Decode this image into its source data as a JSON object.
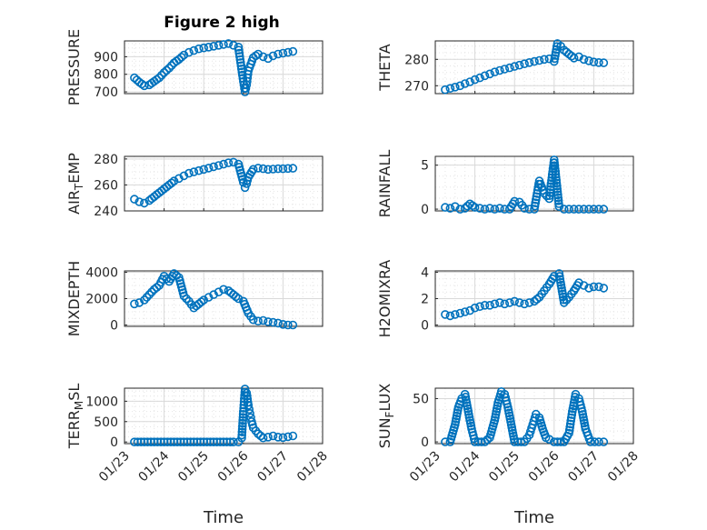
{
  "title": "Figure 2 high",
  "chart_data": [
    {
      "type": "scatter",
      "ylabel": "PRESSURE",
      "xlabel": "",
      "ylim": [
        690,
        990
      ],
      "yticks": [
        "700",
        "800",
        "900"
      ],
      "xticks": [
        "01/23",
        "01/24",
        "01/25",
        "01/26",
        "01/27",
        "01/28"
      ],
      "x": [
        "01/23 06:00",
        "01/23 09:00",
        "01/23 12:00",
        "01/23 15:00",
        "01/23 18:00",
        "01/23 21:00",
        "01/24 00:00",
        "01/24 03:00",
        "01/24 06:00",
        "01/24 09:00",
        "01/24 12:00",
        "01/24 15:00",
        "01/24 18:00",
        "01/24 21:00",
        "01/25 00:00",
        "01/25 03:00",
        "01/25 06:00",
        "01/25 09:00",
        "01/25 12:00",
        "01/25 15:00",
        "01/25 18:00",
        "01/25 21:00",
        "01/26 00:00",
        "01/26 01:00",
        "01/26 02:00",
        "01/26 03:00",
        "01/26 06:00",
        "01/26 09:00",
        "01/26 12:00",
        "01/26 15:00",
        "01/26 18:00",
        "01/26 21:00",
        "01/27 00:00",
        "01/27 03:00",
        "01/27 06:00"
      ],
      "y": [
        780,
        755,
        735,
        740,
        760,
        780,
        810,
        835,
        865,
        885,
        910,
        925,
        935,
        945,
        950,
        955,
        960,
        965,
        970,
        975,
        965,
        955,
        760,
        700,
        740,
        820,
        895,
        915,
        900,
        890,
        905,
        915,
        920,
        925,
        930
      ]
    },
    {
      "type": "scatter",
      "ylabel": "THETA",
      "xlabel": "",
      "ylim": [
        267,
        287
      ],
      "yticks": [
        "270",
        "280"
      ],
      "xticks": [
        "01/23",
        "01/24",
        "01/25",
        "01/26",
        "01/27",
        "01/28"
      ],
      "x": [
        "01/23 06:00",
        "01/23 09:00",
        "01/23 12:00",
        "01/23 15:00",
        "01/23 18:00",
        "01/23 21:00",
        "01/24 00:00",
        "01/24 03:00",
        "01/24 06:00",
        "01/24 09:00",
        "01/24 12:00",
        "01/24 15:00",
        "01/24 18:00",
        "01/24 21:00",
        "01/25 00:00",
        "01/25 03:00",
        "01/25 06:00",
        "01/25 09:00",
        "01/25 12:00",
        "01/25 15:00",
        "01/25 18:00",
        "01/25 21:00",
        "01/26 00:00",
        "01/26 02:00",
        "01/26 04:00",
        "01/26 06:00",
        "01/26 09:00",
        "01/26 12:00",
        "01/26 15:00",
        "01/26 18:00",
        "01/26 21:00",
        "01/27 00:00",
        "01/27 03:00",
        "01/27 06:00"
      ],
      "y": [
        268.5,
        269,
        269.5,
        270,
        270.8,
        271.5,
        272.3,
        273,
        273.8,
        274.5,
        275.2,
        275.8,
        276.3,
        276.8,
        277.3,
        277.8,
        278.3,
        278.8,
        279.2,
        279.6,
        280,
        280.2,
        279.2,
        286,
        285,
        283.5,
        282,
        280.5,
        281,
        280,
        279.5,
        279,
        278.8,
        278.7
      ]
    },
    {
      "type": "scatter",
      "ylabel": "AIR_TEMP",
      "xlabel": "",
      "ylim": [
        240,
        282
      ],
      "yticks": [
        "240",
        "260",
        "280"
      ],
      "xticks": [
        "01/23",
        "01/24",
        "01/25",
        "01/26",
        "01/27",
        "01/28"
      ],
      "x": [
        "01/23 06:00",
        "01/23 09:00",
        "01/23 12:00",
        "01/23 15:00",
        "01/23 18:00",
        "01/23 21:00",
        "01/24 00:00",
        "01/24 03:00",
        "01/24 06:00",
        "01/24 09:00",
        "01/24 12:00",
        "01/24 15:00",
        "01/24 18:00",
        "01/24 21:00",
        "01/25 00:00",
        "01/25 03:00",
        "01/25 06:00",
        "01/25 09:00",
        "01/25 12:00",
        "01/25 15:00",
        "01/25 18:00",
        "01/25 21:00",
        "01/26 00:00",
        "01/26 01:00",
        "01/26 02:00",
        "01/26 03:00",
        "01/26 06:00",
        "01/26 09:00",
        "01/26 12:00",
        "01/26 15:00",
        "01/26 18:00",
        "01/26 21:00",
        "01/27 00:00",
        "01/27 03:00",
        "01/27 06:00"
      ],
      "y": [
        249,
        247,
        246,
        248,
        251,
        254,
        257,
        260,
        263,
        265,
        267,
        269,
        270,
        271,
        272,
        273,
        274,
        275,
        276,
        277,
        277.5,
        276,
        262,
        258,
        261,
        266,
        272,
        273,
        272.5,
        272,
        272.2,
        272.5,
        272.5,
        272.7,
        272.8
      ]
    },
    {
      "type": "scatter",
      "ylabel": "RAINFALL",
      "xlabel": "",
      "ylim": [
        -0.2,
        6
      ],
      "yticks": [
        "0",
        "5"
      ],
      "xticks": [
        "01/23",
        "01/24",
        "01/25",
        "01/26",
        "01/27",
        "01/28"
      ],
      "x": [
        "01/23 06:00",
        "01/23 09:00",
        "01/23 12:00",
        "01/23 15:00",
        "01/23 18:00",
        "01/23 21:00",
        "01/24 00:00",
        "01/24 03:00",
        "01/24 06:00",
        "01/24 09:00",
        "01/24 12:00",
        "01/24 15:00",
        "01/24 18:00",
        "01/24 21:00",
        "01/25 00:00",
        "01/25 03:00",
        "01/25 06:00",
        "01/25 09:00",
        "01/25 12:00",
        "01/25 15:00",
        "01/25 18:00",
        "01/25 21:00",
        "01/26 00:00",
        "01/26 03:00",
        "01/26 06:00",
        "01/26 09:00",
        "01/26 12:00",
        "01/26 15:00",
        "01/26 18:00",
        "01/26 21:00",
        "01/27 00:00",
        "01/27 03:00",
        "01/27 06:00"
      ],
      "y": [
        0.2,
        0.1,
        0.3,
        0,
        0.1,
        0.6,
        0.2,
        0.1,
        0,
        0.1,
        0,
        0.1,
        0,
        0,
        0.9,
        0.8,
        0.1,
        0,
        0,
        3.2,
        1.8,
        1.2,
        5.6,
        0.3,
        0,
        0,
        0,
        0,
        0,
        0,
        0,
        0,
        0
      ]
    },
    {
      "type": "scatter",
      "ylabel": "MIXDEPTH",
      "xlabel": "",
      "ylim": [
        -100,
        4100
      ],
      "yticks": [
        "0",
        "2000",
        "4000"
      ],
      "xticks": [
        "01/23",
        "01/24",
        "01/25",
        "01/26",
        "01/27",
        "01/28"
      ],
      "x": [
        "01/23 06:00",
        "01/23 09:00",
        "01/23 12:00",
        "01/23 15:00",
        "01/23 18:00",
        "01/23 21:00",
        "01/24 00:00",
        "01/24 03:00",
        "01/24 06:00",
        "01/24 09:00",
        "01/24 12:00",
        "01/24 15:00",
        "01/24 18:00",
        "01/24 21:00",
        "01/25 00:00",
        "01/25 03:00",
        "01/25 06:00",
        "01/25 09:00",
        "01/25 12:00",
        "01/25 15:00",
        "01/25 18:00",
        "01/25 21:00",
        "01/26 00:00",
        "01/26 03:00",
        "01/26 06:00",
        "01/26 09:00",
        "01/26 12:00",
        "01/26 15:00",
        "01/26 18:00",
        "01/26 21:00",
        "01/27 00:00",
        "01/27 03:00",
        "01/27 06:00"
      ],
      "y": [
        1600,
        1700,
        1900,
        2300,
        2700,
        3000,
        3700,
        3300,
        3900,
        3600,
        2200,
        1800,
        1300,
        1600,
        1900,
        2100,
        2300,
        2500,
        2700,
        2600,
        2300,
        2000,
        1800,
        900,
        400,
        300,
        350,
        250,
        200,
        150,
        50,
        0,
        0
      ]
    },
    {
      "type": "scatter",
      "ylabel": "H2OMIXRA",
      "xlabel": "",
      "ylim": [
        -0.1,
        4.1
      ],
      "yticks": [
        "0",
        "2",
        "4"
      ],
      "xticks": [
        "01/23",
        "01/24",
        "01/25",
        "01/26",
        "01/27",
        "01/28"
      ],
      "x": [
        "01/23 06:00",
        "01/23 09:00",
        "01/23 12:00",
        "01/23 15:00",
        "01/23 18:00",
        "01/23 21:00",
        "01/24 00:00",
        "01/24 03:00",
        "01/24 06:00",
        "01/24 09:00",
        "01/24 12:00",
        "01/24 15:00",
        "01/24 18:00",
        "01/24 21:00",
        "01/25 00:00",
        "01/25 03:00",
        "01/25 06:00",
        "01/25 09:00",
        "01/25 12:00",
        "01/25 15:00",
        "01/25 18:00",
        "01/25 21:00",
        "01/26 00:00",
        "01/26 03:00",
        "01/26 06:00",
        "01/26 09:00",
        "01/26 12:00",
        "01/26 15:00",
        "01/26 18:00",
        "01/26 21:00",
        "01/27 00:00",
        "01/27 03:00",
        "01/27 06:00"
      ],
      "y": [
        0.8,
        0.7,
        0.8,
        0.9,
        1.0,
        1.1,
        1.3,
        1.4,
        1.5,
        1.5,
        1.6,
        1.7,
        1.6,
        1.7,
        1.8,
        1.7,
        1.6,
        1.7,
        1.8,
        2.1,
        2.6,
        3.1,
        3.7,
        3.9,
        1.7,
        2.1,
        2.6,
        3.2,
        3.0,
        2.8,
        2.9,
        2.9,
        2.8
      ]
    },
    {
      "type": "scatter",
      "ylabel": "TERR_MSL",
      "xlabel": "Time",
      "ylim": [
        -40,
        1320
      ],
      "yticks": [
        "0",
        "500",
        "1000"
      ],
      "xticks": [
        "01/23",
        "01/24",
        "01/25",
        "01/26",
        "01/27",
        "01/28"
      ],
      "x": [
        "01/23 06:00",
        "01/23 12:00",
        "01/23 18:00",
        "01/24 00:00",
        "01/24 06:00",
        "01/24 12:00",
        "01/24 18:00",
        "01/25 00:00",
        "01/25 06:00",
        "01/25 12:00",
        "01/25 18:00",
        "01/25 21:00",
        "01/25 23:00",
        "01/26 00:00",
        "01/26 01:00",
        "01/26 02:00",
        "01/26 03:00",
        "01/26 04:00",
        "01/26 05:00",
        "01/26 06:00",
        "01/26 09:00",
        "01/26 12:00",
        "01/26 15:00",
        "01/26 18:00",
        "01/26 21:00",
        "01/27 00:00",
        "01/27 03:00",
        "01/27 06:00"
      ],
      "y": [
        0,
        0,
        0,
        0,
        0,
        0,
        0,
        0,
        0,
        0,
        0,
        0,
        100,
        750,
        1300,
        1200,
        900,
        700,
        500,
        350,
        200,
        100,
        120,
        150,
        120,
        110,
        130,
        150
      ]
    },
    {
      "type": "scatter",
      "ylabel": "SUN_FLUX",
      "xlabel": "Time",
      "ylim": [
        -2,
        62
      ],
      "yticks": [
        "0",
        "50"
      ],
      "xticks": [
        "01/23",
        "01/24",
        "01/25",
        "01/26",
        "01/27",
        "01/28"
      ],
      "x": [
        "01/23 06:00",
        "01/23 09:00",
        "01/23 12:00",
        "01/23 14:00",
        "01/23 16:00",
        "01/23 18:00",
        "01/23 20:00",
        "01/23 22:00",
        "01/24 00:00",
        "01/24 06:00",
        "01/24 09:00",
        "01/24 12:00",
        "01/24 14:00",
        "01/24 16:00",
        "01/24 18:00",
        "01/24 20:00",
        "01/24 22:00",
        "01/25 00:00",
        "01/25 06:00",
        "01/25 09:00",
        "01/25 11:00",
        "01/25 13:00",
        "01/25 15:00",
        "01/25 17:00",
        "01/25 19:00",
        "01/25 21:00",
        "01/26 00:00",
        "01/26 06:00",
        "01/26 09:00",
        "01/26 11:00",
        "01/26 13:00",
        "01/26 15:00",
        "01/26 17:00",
        "01/26 19:00",
        "01/26 22:00",
        "01/27 03:00",
        "01/27 06:00"
      ],
      "y": [
        0,
        0,
        20,
        40,
        50,
        55,
        35,
        15,
        0,
        0,
        5,
        25,
        45,
        58,
        55,
        40,
        20,
        0,
        0,
        8,
        20,
        32,
        28,
        15,
        5,
        3,
        0,
        0,
        10,
        35,
        55,
        50,
        35,
        15,
        0,
        0,
        0
      ]
    }
  ]
}
